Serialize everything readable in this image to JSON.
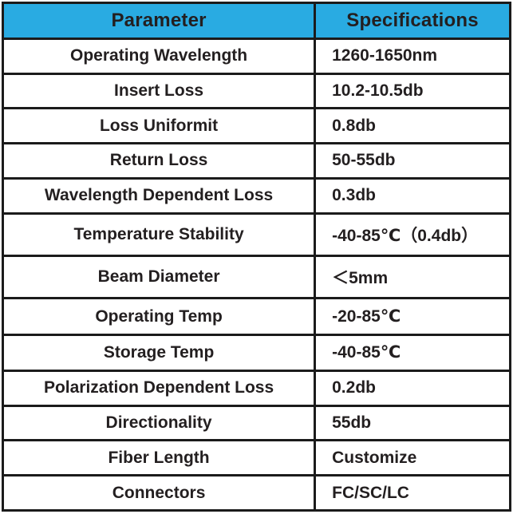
{
  "table": {
    "headers": [
      "Parameter",
      "Specifications"
    ],
    "rows": [
      {
        "param": "Operating Wavelength",
        "spec": "1260-1650nm"
      },
      {
        "param": "Insert Loss",
        "spec": "10.2-10.5db"
      },
      {
        "param": "Loss Uniformit",
        "spec": "0.8db"
      },
      {
        "param": "Return Loss",
        "spec": "50-55db"
      },
      {
        "param": "Wavelength Dependent Loss",
        "spec": "0.3db"
      },
      {
        "param": "Temperature Stability",
        "spec": "-40-85℃（0.4db）"
      },
      {
        "param": "Beam Diameter",
        "spec": "＜5mm"
      },
      {
        "param": "Operating Temp",
        "spec": "-20-85℃"
      },
      {
        "param": "Storage Temp",
        "spec": "-40-85℃"
      },
      {
        "param": "Polarization Dependent Loss",
        "spec": "0.2db"
      },
      {
        "param": "Directionality",
        "spec": "55db"
      },
      {
        "param": "Fiber Length",
        "spec": "Customize"
      },
      {
        "param": "Connectors",
        "spec": "FC/SC/LC"
      }
    ],
    "colors": {
      "header_bg": "#29abe2",
      "border": "#1b1b1b",
      "text": "#231f20"
    }
  }
}
